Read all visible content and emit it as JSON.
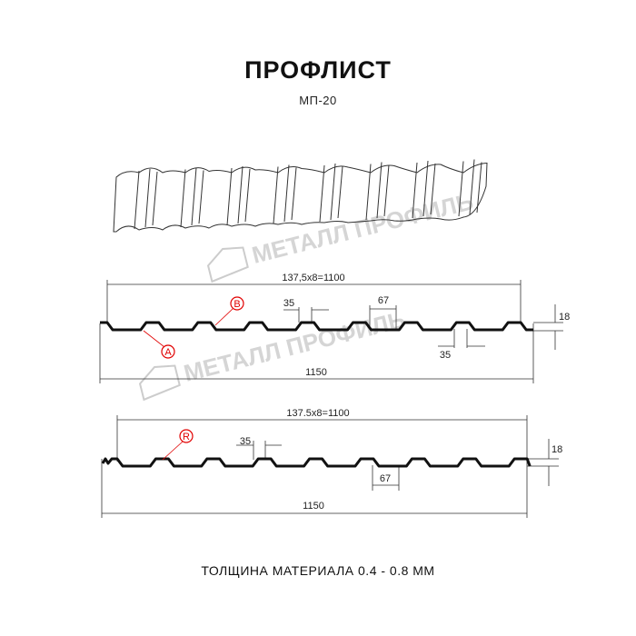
{
  "header": {
    "title": "ПРОФЛИСТ",
    "subtitle": "МП-20"
  },
  "watermark": {
    "text": "МЕТАЛЛ ПРОФИЛЬ"
  },
  "profile_a": {
    "pitch_label": "137,5x8=1100",
    "top_width_label": "35",
    "bottom_width_label": "35",
    "rib_label": "67",
    "height_label": "18",
    "total_width_label": "1150",
    "marker_a": "A",
    "marker_b": "B"
  },
  "profile_r": {
    "pitch_label": "137.5x8=1100",
    "top_width_label": "35",
    "rib_label": "67",
    "height_label": "18",
    "total_width_label": "1150",
    "marker_r": "R"
  },
  "footer": {
    "thickness": "ТОЛЩИНА МАТЕРИАЛА 0.4 - 0.8 ММ"
  },
  "colors": {
    "line": "#111111",
    "marker": "#e10000",
    "watermark": "#c8c8c8"
  }
}
